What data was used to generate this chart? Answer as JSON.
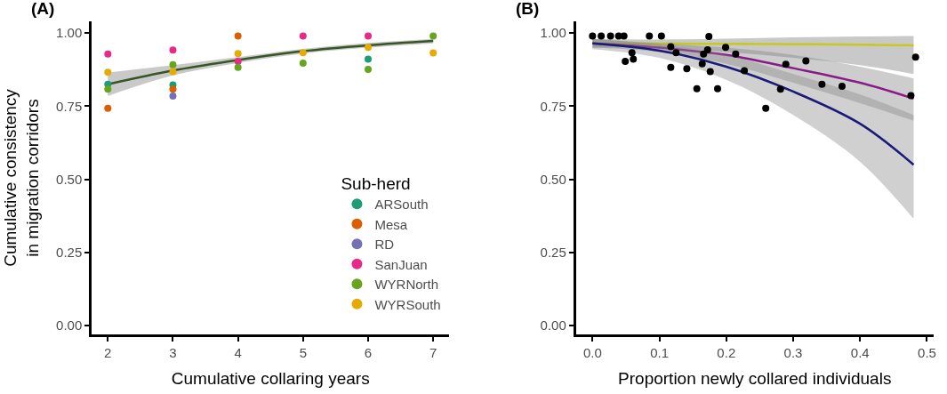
{
  "chart_data": [
    {
      "type": "scatter",
      "title": "(A)",
      "xlabel": "Cumulative collaring years",
      "ylabel": "Cumulative consistency\nin migration corridors",
      "legend_title": "Sub-herd",
      "legend": "bottom right",
      "grid": false,
      "marker": "circle",
      "xlim": [
        1.75,
        7.25
      ],
      "xticks": [
        2,
        3,
        4,
        5,
        6,
        7
      ],
      "ylim": [
        -0.03,
        1.04
      ],
      "yticks": [
        {
          "value": 0,
          "label": "0.00"
        },
        {
          "value": 0.25,
          "label": "0.25"
        },
        {
          "value": 0.5,
          "label": "0.50"
        },
        {
          "value": 0.75,
          "label": "0.75"
        },
        {
          "value": 1,
          "label": "1.00"
        }
      ],
      "series": [
        {
          "type": "line",
          "marker": "none",
          "color": "#375623",
          "x": [
            2,
            3,
            4,
            5,
            6,
            7
          ],
          "values": [
            0.825,
            0.872,
            0.908,
            0.938,
            0.958,
            0.973
          ],
          "lower": [
            0.785,
            0.855,
            0.898,
            0.93,
            0.95,
            0.965
          ],
          "upper": [
            0.865,
            0.89,
            0.918,
            0.946,
            0.966,
            0.98
          ]
        },
        {
          "name": "ARSouth",
          "color": "#1b9e77",
          "x": [
            2,
            3,
            6
          ],
          "values": [
            0.825,
            0.823,
            0.911
          ]
        },
        {
          "name": "Mesa",
          "color": "#d95f02",
          "x": [
            2,
            3,
            4
          ],
          "values": [
            0.743,
            0.808,
            0.99
          ]
        },
        {
          "name": "RD",
          "color": "#7570b3",
          "x": [
            3
          ],
          "values": [
            0.785
          ]
        },
        {
          "name": "SanJuan",
          "color": "#e7298a",
          "x": [
            2,
            3,
            4,
            5,
            6
          ],
          "values": [
            0.928,
            0.942,
            0.903,
            0.99,
            0.99
          ]
        },
        {
          "name": "WYRNorth",
          "color": "#66a61e",
          "x": [
            2,
            3,
            4,
            5,
            6,
            7
          ],
          "values": [
            0.808,
            0.892,
            0.883,
            0.897,
            0.876,
            0.99
          ]
        },
        {
          "name": "WYRSouth",
          "color": "#e6ab02",
          "x": [
            2,
            3,
            4,
            5,
            6,
            7
          ],
          "values": [
            0.866,
            0.868,
            0.93,
            0.933,
            0.951,
            0.932
          ]
        }
      ]
    },
    {
      "type": "scatter",
      "title": "(B)",
      "xlabel": "Proportion newly collared individuals",
      "grid": false,
      "marker": "circle",
      "legend": false,
      "xlim": [
        -0.025,
        0.51
      ],
      "xticks": [
        {
          "value": 0,
          "label": "0.0"
        },
        {
          "value": 0.1,
          "label": "0.1"
        },
        {
          "value": 0.2,
          "label": "0.2"
        },
        {
          "value": 0.3,
          "label": "0.3"
        },
        {
          "value": 0.4,
          "label": "0.4"
        },
        {
          "value": 0.5,
          "label": "0.5"
        }
      ],
      "ylim": [
        -0.03,
        1.04
      ],
      "yticks": [
        {
          "value": 0,
          "label": "0.00"
        },
        {
          "value": 0.25,
          "label": "0.25"
        },
        {
          "value": 0.5,
          "label": "0.50"
        },
        {
          "value": 0.75,
          "label": "0.75"
        },
        {
          "value": 1,
          "label": "1.00"
        }
      ],
      "series": [
        {
          "type": "line",
          "marker": "none",
          "color": "#c8c81e",
          "x": [
            0,
            0.1,
            0.2,
            0.3,
            0.4,
            0.48
          ],
          "values": [
            0.965,
            0.964,
            0.963,
            0.962,
            0.96,
            0.958
          ],
          "lower": [
            0.95,
            0.95,
            0.935,
            0.915,
            0.89,
            0.86
          ],
          "upper": [
            0.98,
            0.978,
            0.981,
            0.985,
            0.988,
            0.99
          ]
        },
        {
          "type": "line",
          "marker": "none",
          "color": "#8b1a89",
          "x": [
            0,
            0.1,
            0.2,
            0.3,
            0.4,
            0.48
          ],
          "values": [
            0.965,
            0.95,
            0.925,
            0.88,
            0.83,
            0.776
          ],
          "lower": [
            0.95,
            0.935,
            0.895,
            0.83,
            0.76,
            0.7
          ],
          "upper": [
            0.98,
            0.965,
            0.95,
            0.925,
            0.885,
            0.845
          ]
        },
        {
          "type": "line",
          "marker": "none",
          "color": "#1a1a7a",
          "x": [
            0,
            0.1,
            0.2,
            0.3,
            0.4,
            0.48
          ],
          "values": [
            0.965,
            0.94,
            0.885,
            0.8,
            0.69,
            0.55
          ],
          "lower": [
            0.945,
            0.915,
            0.84,
            0.72,
            0.56,
            0.365
          ],
          "upper": [
            0.98,
            0.96,
            0.925,
            0.86,
            0.79,
            0.72
          ]
        },
        {
          "color": "#000000",
          "x": [
            0,
            0.013,
            0.027,
            0.039,
            0.047,
            0.049,
            0.059,
            0.061,
            0.085,
            0.103,
            0.117,
            0.117,
            0.125,
            0.141,
            0.156,
            0.164,
            0.166,
            0.172,
            0.174,
            0.176,
            0.187,
            0.199,
            0.214,
            0.227,
            0.259,
            0.281,
            0.289,
            0.319,
            0.343,
            0.373,
            0.476,
            0.483
          ],
          "values": [
            0.99,
            0.99,
            0.99,
            0.99,
            0.99,
            0.903,
            0.933,
            0.911,
            0.99,
            0.99,
            0.953,
            0.883,
            0.933,
            0.878,
            0.81,
            0.895,
            0.928,
            0.943,
            0.988,
            0.868,
            0.81,
            0.951,
            0.928,
            0.871,
            0.743,
            0.808,
            0.893,
            0.905,
            0.825,
            0.818,
            0.786,
            0.918
          ]
        }
      ]
    }
  ]
}
